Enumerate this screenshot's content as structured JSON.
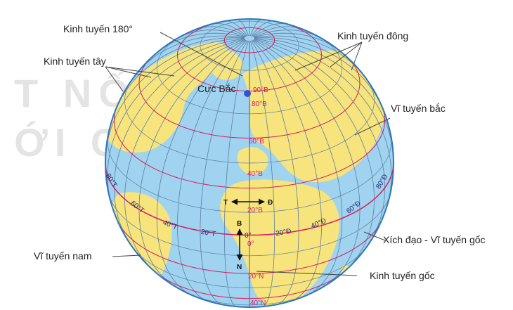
{
  "colors": {
    "ocean": "#9fd3ef",
    "land": "#f7e47c",
    "grid": "#5d7ea3",
    "parallel_red": "#d81b60",
    "leader": "#444444"
  },
  "labels": {
    "meridian_180": "Kinh tuyến 180°",
    "east_meridian": "Kinh tuyến đông",
    "west_meridian": "Kinh tuyến tây",
    "north_pole": "Cực Bắc",
    "north_parallel": "Vĩ tuyến bắc",
    "equator": "Xích đạo - Vĩ tuyến gốc",
    "south_parallel": "Vĩ tuyến nam",
    "prime_meridian": "Kinh tuyến gốc"
  },
  "latitude_marks": {
    "lat_90n": "90°B",
    "lat_80n": "80°B",
    "lat_60n": "60°B",
    "lat_40n": "40°B",
    "lat_20n": "20°B",
    "lat_0": "0°",
    "lat_20s": "20°N",
    "lat_40s": "40°N"
  },
  "longitude_marks": {
    "lon_0": "0°",
    "lon_20e": "20°Đ",
    "lon_40e": "40°Đ",
    "lon_60e": "60°Đ",
    "lon_80e": "80°Đ",
    "lon_20w": "20°T",
    "lon_40w": "40°T",
    "lon_60w": "60°T",
    "lon_80w": "80°T"
  },
  "compass": {
    "west": "T",
    "east": "Đ",
    "north": "B",
    "south": "N"
  },
  "watermark": {
    "line1": "T NỐI TH",
    "line2": "ỚI CUỘC SỐNG"
  }
}
